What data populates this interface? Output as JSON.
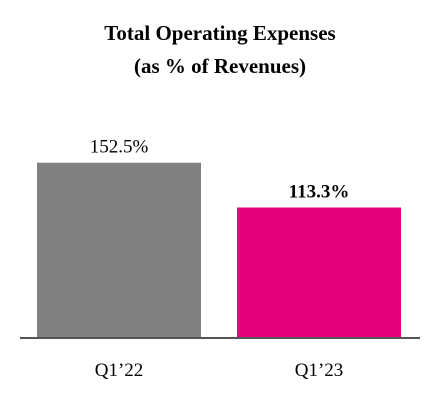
{
  "chart_data": {
    "type": "bar",
    "title": "Total Operating Expenses",
    "subtitle": "(as % of Revenues)",
    "categories": [
      "Q1’22",
      "Q1’23"
    ],
    "values": [
      152.5,
      113.3
    ],
    "value_labels": [
      "152.5%",
      "113.3%"
    ],
    "value_label_bold": [
      false,
      true
    ],
    "colors": [
      "#808080",
      "#e6007e"
    ],
    "ylim": [
      0,
      175
    ],
    "grid": false,
    "legend": false
  }
}
